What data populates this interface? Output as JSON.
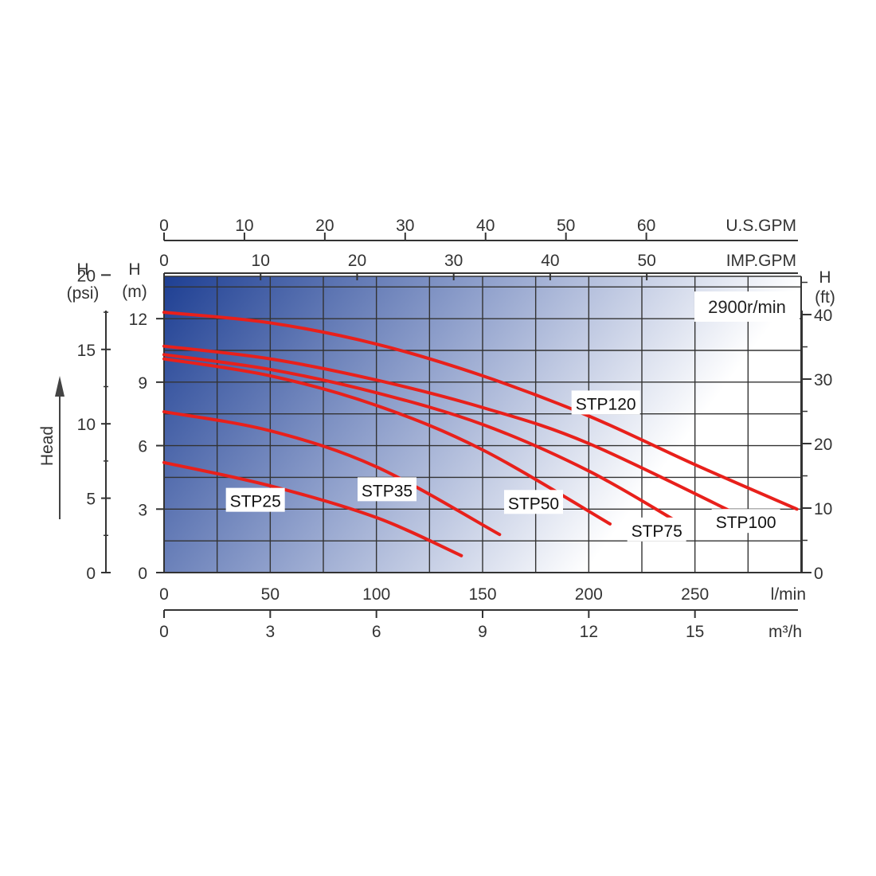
{
  "chart_data": {
    "type": "line",
    "speed_note": "2900r/min",
    "vertical_title": "Head",
    "axes": {
      "x_lpm": {
        "unit": "l/min",
        "ticks": [
          "0",
          "50",
          "100",
          "150",
          "200",
          "250"
        ],
        "range": [
          0,
          300
        ]
      },
      "x_m3h": {
        "unit": "m³/h",
        "ticks": [
          "0",
          "3",
          "6",
          "9",
          "12",
          "15"
        ]
      },
      "x_usgpm": {
        "unit": "U.S.GPM",
        "ticks": [
          "0",
          "10",
          "20",
          "30",
          "40",
          "50",
          "60"
        ]
      },
      "x_impgpm": {
        "unit": "IMP.GPM",
        "ticks": [
          "0",
          "10",
          "20",
          "30",
          "40",
          "50"
        ]
      },
      "y_m": {
        "unit_line1": "H",
        "unit_line2": "(m)",
        "ticks": [
          "0",
          "3",
          "6",
          "9",
          "12"
        ],
        "range": [
          0,
          14
        ]
      },
      "y_psi": {
        "unit_line1": "H",
        "unit_line2": "(psi)",
        "ticks": [
          "0",
          "5",
          "10",
          "15",
          "20"
        ]
      },
      "y_ft": {
        "unit_line1": "H",
        "unit_line2": "(ft)",
        "ticks": [
          "0",
          "10",
          "20",
          "30",
          "40"
        ]
      }
    },
    "grid": true,
    "series": [
      {
        "name": "STP25",
        "x": [
          0,
          50,
          100,
          140
        ],
        "y": [
          5.2,
          4.1,
          2.6,
          0.8
        ]
      },
      {
        "name": "STP35",
        "x": [
          0,
          50,
          100,
          158
        ],
        "y": [
          7.6,
          6.7,
          5.0,
          1.8
        ]
      },
      {
        "name": "STP50",
        "x": [
          0,
          50,
          100,
          150,
          210
        ],
        "y": [
          10.1,
          9.3,
          7.9,
          5.8,
          2.3
        ]
      },
      {
        "name": "STP75",
        "x": [
          0,
          50,
          100,
          150,
          200,
          245
        ],
        "y": [
          10.3,
          9.6,
          8.5,
          7.0,
          4.8,
          2.2
        ]
      },
      {
        "name": "STP100",
        "x": [
          0,
          50,
          100,
          150,
          200,
          275
        ],
        "y": [
          10.7,
          10.1,
          9.1,
          7.8,
          6.1,
          2.5
        ]
      },
      {
        "name": "STP120",
        "x": [
          0,
          50,
          100,
          150,
          200,
          250,
          298
        ],
        "y": [
          12.3,
          11.8,
          10.8,
          9.3,
          7.4,
          5.1,
          3.0
        ]
      }
    ],
    "colors": {
      "curve": "#e8201b",
      "gradient_start": "#1e3f93",
      "gradient_end": "#ffffff",
      "grid": "#333333"
    }
  }
}
